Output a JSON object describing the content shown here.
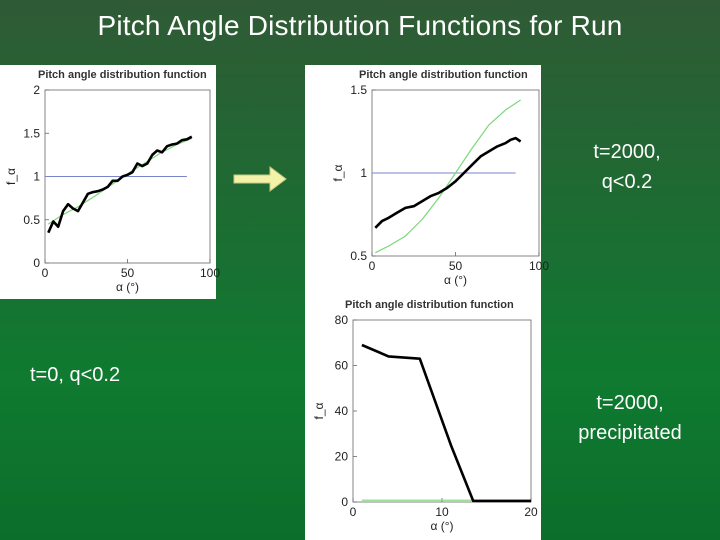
{
  "slide": {
    "title": "Pitch Angle Distribution Functions for Run",
    "caption_left": "t=0, q<0.2",
    "caption_top_right": "t=2000,\nq<0.2",
    "caption_bottom_right": "t=2000,\nprecipitated"
  },
  "colors": {
    "background": "#1f6a33",
    "data_line": "#000000",
    "fit_line": "#7cd67c",
    "reference_line": "#7a86c8",
    "arrow_fill": "#f2f2a8"
  },
  "icons": {
    "arrow": "right-arrow-icon"
  },
  "chart_data": [
    {
      "type": "line",
      "title": "Pitch angle distribution function",
      "xlabel": "α (°)",
      "ylabel": "f_α",
      "xlim": [
        0,
        100
      ],
      "ylim": [
        0,
        2
      ],
      "xticks": [
        "0",
        "50",
        "100"
      ],
      "yticks": [
        "0",
        "0.5",
        "1",
        "1.5",
        "2"
      ],
      "reference": 1,
      "series": [
        {
          "x": [
            2,
            5,
            8,
            11,
            14,
            17,
            20,
            23,
            26,
            29,
            32,
            35,
            38,
            41,
            44,
            47,
            50,
            53,
            56,
            59,
            62,
            65,
            68,
            71,
            74,
            77,
            80,
            83,
            86,
            89
          ],
          "y": [
            0.35,
            0.48,
            0.42,
            0.6,
            0.68,
            0.63,
            0.6,
            0.7,
            0.8,
            0.82,
            0.83,
            0.85,
            0.88,
            0.95,
            0.95,
            1.0,
            1.02,
            1.05,
            1.15,
            1.12,
            1.15,
            1.25,
            1.3,
            1.28,
            1.35,
            1.37,
            1.38,
            1.42,
            1.43,
            1.46
          ]
        },
        {
          "x": [
            2,
            10,
            20,
            30,
            40,
            50,
            60,
            70,
            80,
            89
          ],
          "y": [
            0.45,
            0.55,
            0.65,
            0.77,
            0.9,
            1.03,
            1.15,
            1.27,
            1.37,
            1.44
          ]
        }
      ]
    },
    {
      "type": "line",
      "title": "Pitch angle distribution function",
      "xlabel": "α (°)",
      "ylabel": "f_α",
      "xlim": [
        0,
        100
      ],
      "ylim": [
        0.5,
        1.5
      ],
      "xticks": [
        "0",
        "50",
        "100"
      ],
      "yticks": [
        "0.5",
        "1",
        "1.5"
      ],
      "reference": 1,
      "series": [
        {
          "x": [
            2,
            6,
            10,
            15,
            20,
            25,
            30,
            35,
            40,
            45,
            50,
            55,
            60,
            65,
            70,
            75,
            80,
            83,
            86,
            89
          ],
          "y": [
            0.67,
            0.71,
            0.73,
            0.76,
            0.79,
            0.8,
            0.83,
            0.86,
            0.88,
            0.91,
            0.95,
            1.0,
            1.05,
            1.1,
            1.13,
            1.16,
            1.18,
            1.2,
            1.21,
            1.19
          ]
        },
        {
          "x": [
            2,
            10,
            20,
            30,
            40,
            50,
            60,
            70,
            80,
            89
          ],
          "y": [
            0.52,
            0.56,
            0.62,
            0.72,
            0.85,
            1.0,
            1.15,
            1.29,
            1.38,
            1.44
          ]
        }
      ]
    },
    {
      "type": "line",
      "title": "Pitch angle distribution function",
      "xlabel": "α (°)",
      "ylabel": "f_α",
      "xlim": [
        0,
        20
      ],
      "ylim": [
        0,
        80
      ],
      "xticks": [
        "0",
        "10",
        "20"
      ],
      "yticks": [
        "0",
        "20",
        "40",
        "60",
        "80"
      ],
      "series": [
        {
          "x": [
            1,
            4,
            7.5,
            11,
            13.5,
            20
          ],
          "y": [
            69,
            64,
            63,
            25,
            0.5,
            0.5
          ]
        },
        {
          "x": [
            1,
            20
          ],
          "y": [
            0.8,
            0.8
          ]
        }
      ]
    }
  ]
}
